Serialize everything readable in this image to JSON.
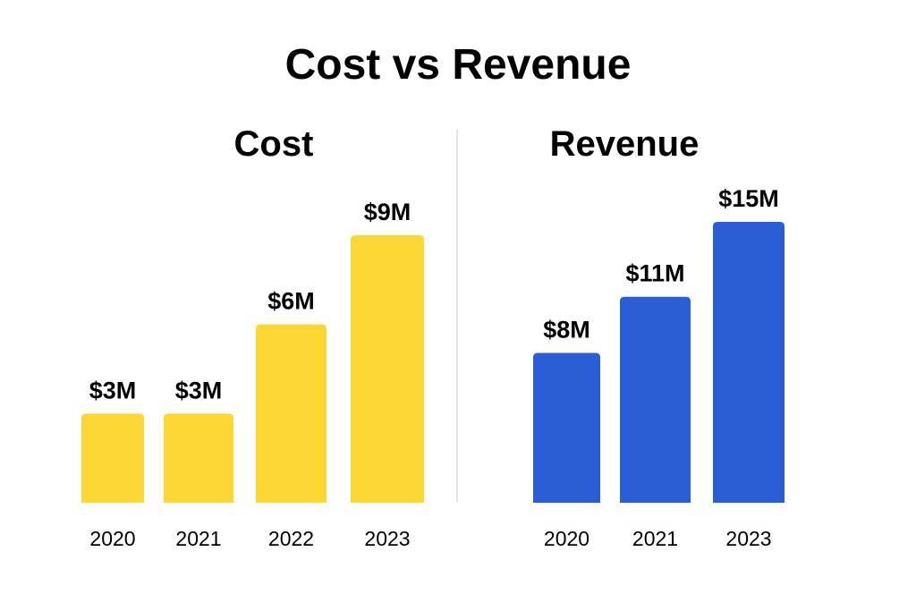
{
  "title": "Cost vs Revenue",
  "chart_data": [
    {
      "type": "bar",
      "title": "Cost",
      "categories": [
        "2020",
        "2021",
        "2022",
        "2023"
      ],
      "values": [
        3,
        3,
        6,
        9
      ],
      "data_labels": [
        "$3M",
        "$3M",
        "$6M",
        "$9M"
      ],
      "unit": "$M",
      "color": "#FCD633",
      "grid": false
    },
    {
      "type": "bar",
      "title": "Revenue",
      "categories": [
        "2020",
        "2021",
        "2023"
      ],
      "values": [
        8,
        11,
        15
      ],
      "data_labels": [
        "$8M",
        "$11M",
        "$15M"
      ],
      "unit": "$M",
      "color": "#2A5DD6",
      "grid": false
    }
  ]
}
